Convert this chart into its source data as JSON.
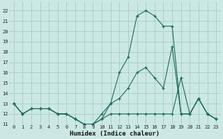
{
  "xlabel": "Humidex (Indice chaleur)",
  "bg_color": "#cce8e4",
  "grid_color": "#aacfca",
  "line_color": "#1a6b5a",
  "xlim": [
    -0.5,
    23.5
  ],
  "ylim": [
    11,
    22.8
  ],
  "xticks": [
    0,
    1,
    2,
    3,
    4,
    5,
    6,
    7,
    8,
    9,
    10,
    11,
    12,
    13,
    14,
    15,
    16,
    17,
    18,
    19,
    20,
    21,
    22,
    23
  ],
  "yticks": [
    11,
    12,
    13,
    14,
    15,
    16,
    17,
    18,
    19,
    20,
    21,
    22
  ],
  "series": [
    [
      13.0,
      12.0,
      12.5,
      12.5,
      12.5,
      12.0,
      12.0,
      11.5,
      11.0,
      11.0,
      11.5,
      12.0,
      12.0,
      12.0,
      12.0,
      12.0,
      12.0,
      12.0,
      12.0,
      15.5,
      12.0,
      13.5,
      12.0,
      11.5
    ],
    [
      13.0,
      12.0,
      12.5,
      12.5,
      12.5,
      12.0,
      12.0,
      11.5,
      11.0,
      11.0,
      12.0,
      13.0,
      13.5,
      14.5,
      16.0,
      16.5,
      15.5,
      14.5,
      18.5,
      12.0,
      12.0,
      13.5,
      12.0,
      11.5
    ],
    [
      13.0,
      12.0,
      12.5,
      12.5,
      12.5,
      12.0,
      12.0,
      11.5,
      11.0,
      11.0,
      11.5,
      13.0,
      16.0,
      17.5,
      21.5,
      22.0,
      21.5,
      20.5,
      20.5,
      12.0,
      12.0,
      13.5,
      12.0,
      11.5
    ]
  ]
}
